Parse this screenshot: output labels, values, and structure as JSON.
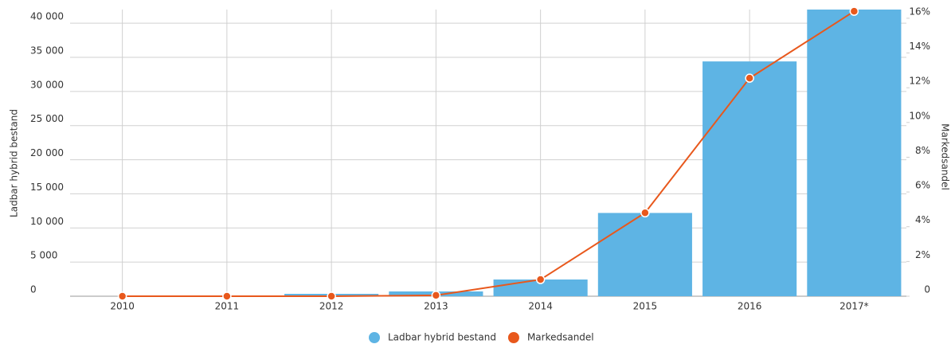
{
  "chart_data": {
    "type": "bar-line",
    "categories": [
      "2010",
      "2011",
      "2012",
      "2013",
      "2014",
      "2015",
      "2016",
      "2017*"
    ],
    "y_label": "Ladbar hybrid bestand",
    "y2_label": "Markedsandel",
    "ylim": [
      0,
      42000
    ],
    "yticks": [
      0,
      {
        "value": 5000,
        "label": "5 000"
      },
      {
        "value": 10000,
        "label": "10 000"
      },
      {
        "value": 15000,
        "label": "15 000"
      },
      {
        "value": 20000,
        "label": "20 000"
      },
      {
        "value": 25000,
        "label": "25 000"
      },
      {
        "value": 30000,
        "label": "30 000"
      },
      {
        "value": 35000,
        "label": "35 000"
      },
      {
        "value": 40000,
        "label": "40 000"
      }
    ],
    "y2lim": [
      0,
      16.5
    ],
    "y2ticks": [
      0,
      {
        "value": 2,
        "label": "2%"
      },
      {
        "value": 4,
        "label": "4%"
      },
      {
        "value": 6,
        "label": "6%"
      },
      {
        "value": 8,
        "label": "8%"
      },
      {
        "value": 10,
        "label": "10%"
      },
      {
        "value": 12,
        "label": "12%"
      },
      {
        "value": 14,
        "label": "14%"
      },
      {
        "value": 16,
        "label": "16%"
      }
    ],
    "grid": true,
    "legend": "bottom",
    "series": [
      {
        "name": "Ladbar hybrid bestand",
        "type": "bar",
        "color": "#5eb4e4",
        "values": [
          0,
          0,
          350,
          700,
          2450,
          12200,
          34400,
          42000
        ]
      },
      {
        "name": "Markedsandel",
        "type": "line",
        "axis": "y2",
        "color": "#e8581c",
        "values": [
          0,
          0,
          0,
          0.05,
          0.96,
          4.8,
          12.55,
          16.4
        ]
      }
    ]
  }
}
